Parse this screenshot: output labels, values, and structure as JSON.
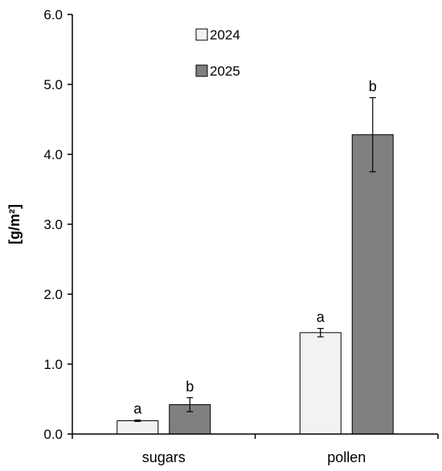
{
  "chart_data": {
    "type": "bar",
    "title": "",
    "xlabel": "",
    "ylabel": "[g/m²]",
    "ylim": [
      0,
      6
    ],
    "yticks": [
      "0.0",
      "1.0",
      "2.0",
      "3.0",
      "4.0",
      "5.0",
      "6.0"
    ],
    "ytick_values": [
      0,
      1,
      2,
      3,
      4,
      5,
      6
    ],
    "categories": [
      "sugars",
      "pollen"
    ],
    "series": [
      {
        "name": "2024",
        "color": "#f2f2f2",
        "values": [
          0.19,
          1.45
        ],
        "errors": [
          0.01,
          0.06
        ],
        "labels": [
          "a",
          "a"
        ]
      },
      {
        "name": "2025",
        "color": "#808080",
        "values": [
          0.42,
          4.28
        ],
        "errors": [
          0.1,
          0.53
        ],
        "labels": [
          "b",
          "b"
        ]
      }
    ],
    "legend": "top-center",
    "grid": false
  }
}
